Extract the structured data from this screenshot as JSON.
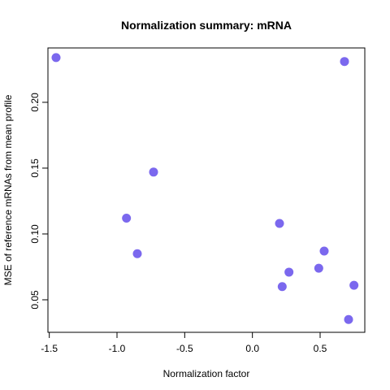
{
  "chart_data": {
    "type": "scatter",
    "title": "Normalization summary: mRNA",
    "xlabel": "Normalization factor",
    "ylabel": "MSE of reference mRNAs from mean profile",
    "xlim": [
      -1.51,
      0.83
    ],
    "ylim": [
      0.0253,
      0.2413
    ],
    "x_ticks": [
      -1.5,
      -1.0,
      -0.5,
      0.0,
      0.5
    ],
    "x_tick_labels": [
      "-1.5",
      "-1.0",
      "-0.5",
      "0.0",
      "0.5"
    ],
    "y_ticks": [
      0.05,
      0.1,
      0.15,
      0.2
    ],
    "y_tick_labels": [
      "0.05",
      "0.10",
      "0.15",
      "0.20"
    ],
    "grid": false,
    "point_color": "#7B68EE",
    "points": [
      {
        "x": -1.45,
        "y": 0.234
      },
      {
        "x": -0.73,
        "y": 0.147
      },
      {
        "x": -0.93,
        "y": 0.112
      },
      {
        "x": -0.85,
        "y": 0.085
      },
      {
        "x": 0.2,
        "y": 0.108
      },
      {
        "x": 0.53,
        "y": 0.087
      },
      {
        "x": 0.27,
        "y": 0.071
      },
      {
        "x": 0.49,
        "y": 0.074
      },
      {
        "x": 0.22,
        "y": 0.06
      },
      {
        "x": 0.75,
        "y": 0.061
      },
      {
        "x": 0.71,
        "y": 0.035
      },
      {
        "x": 0.68,
        "y": 0.231
      }
    ]
  }
}
